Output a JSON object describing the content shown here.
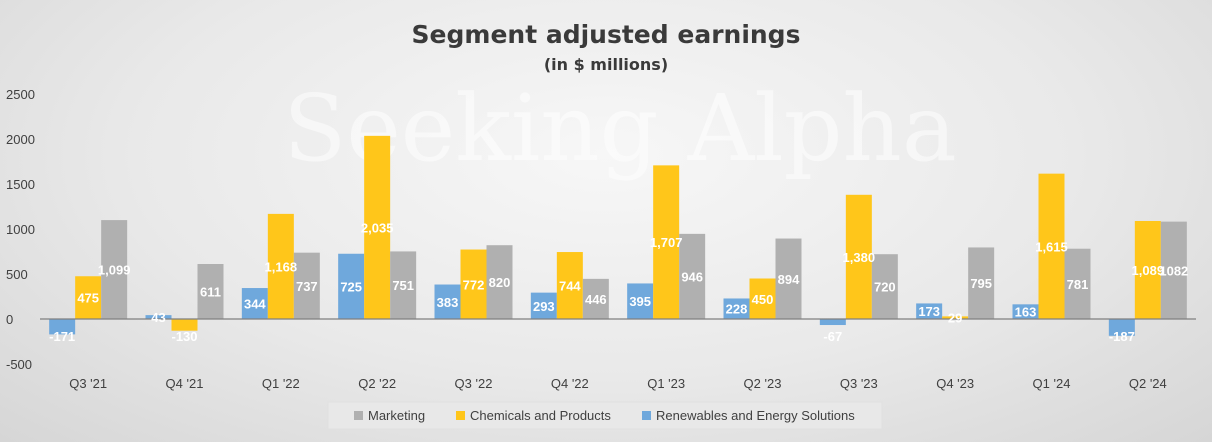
{
  "chart_data": {
    "type": "bar",
    "title": "Segment adjusted earnings",
    "subtitle": "(in $ millions)",
    "xlabel": "",
    "ylabel": "",
    "ylim": [
      -500,
      2500
    ],
    "yticks": [
      -500,
      0,
      500,
      1000,
      1500,
      2000,
      2500
    ],
    "ytick_labels": [
      "-500",
      "0",
      "500",
      "1000",
      "1500",
      "2000",
      "2500"
    ],
    "grid": false,
    "legend_position": "bottom",
    "categories": [
      "Q3 '21",
      "Q4 '21",
      "Q1 '22",
      "Q2 '22",
      "Q3 '22",
      "Q4 '22",
      "Q1 '23",
      "Q2 '23",
      "Q3 '23",
      "Q4 '23",
      "Q1 '24",
      "Q2 '24"
    ],
    "series": [
      {
        "name": "Renewables and Energy Solutions",
        "color": "#6fa8dc",
        "values": [
          -171,
          43,
          344,
          725,
          383,
          293,
          395,
          228,
          -67,
          173,
          163,
          -187
        ],
        "labels": [
          "-171",
          "43",
          "344",
          "725",
          "383",
          "293",
          "395",
          "228",
          "-67",
          "173",
          "163",
          "-187"
        ]
      },
      {
        "name": "Chemicals and Products",
        "color": "#ffc61a",
        "values": [
          475,
          -130,
          1168,
          2035,
          772,
          744,
          1707,
          450,
          1380,
          29,
          1615,
          1089
        ],
        "labels": [
          "475",
          "-130",
          "1,168",
          "2,035",
          "772",
          "744",
          "1,707",
          "450",
          "1,380",
          "29",
          "1,615",
          "1,089"
        ]
      },
      {
        "name": "Marketing",
        "color": "#b0b0b0",
        "values": [
          1099,
          611,
          737,
          751,
          820,
          446,
          946,
          894,
          720,
          795,
          781,
          1082
        ],
        "labels": [
          "1,099",
          "611",
          "737",
          "751",
          "820",
          "446",
          "946",
          "894",
          "720",
          "795",
          "781",
          "1082"
        ]
      }
    ],
    "legend": [
      "Marketing",
      "Chemicals and Products",
      "Renewables and Energy Solutions"
    ],
    "watermark": "Seeking Alpha"
  }
}
